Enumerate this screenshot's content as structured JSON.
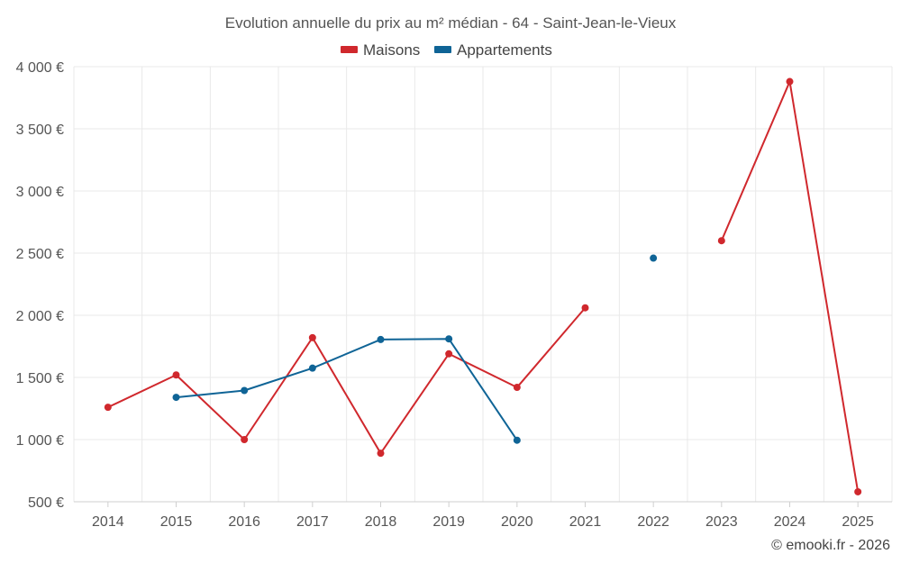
{
  "chart_data": {
    "type": "line",
    "title": "Evolution annuelle du prix au m² médian - 64 - Saint-Jean-le-Vieux",
    "categories": [
      "2014",
      "2015",
      "2016",
      "2017",
      "2018",
      "2019",
      "2020",
      "2021",
      "2022",
      "2023",
      "2024",
      "2025"
    ],
    "series": [
      {
        "name": "Maisons",
        "color": "#d0282d",
        "values": [
          1260,
          1520,
          1000,
          1820,
          890,
          1690,
          1420,
          2060,
          null,
          2600,
          3880,
          580
        ]
      },
      {
        "name": "Appartements",
        "color": "#0f6496",
        "values": [
          null,
          1340,
          1395,
          1575,
          1805,
          1810,
          995,
          null,
          2460,
          null,
          null,
          null
        ]
      }
    ],
    "y_ticks": [
      500,
      1000,
      1500,
      2000,
      2500,
      3000,
      3500,
      4000
    ],
    "y_tick_labels": [
      "500 €",
      "1 000 €",
      "1 500 €",
      "2 000 €",
      "2 500 €",
      "3 000 €",
      "3 500 €",
      "4 000 €"
    ],
    "ylim": [
      500,
      4000
    ],
    "xlabel": "",
    "ylabel": "",
    "grid": true,
    "legend_position": "top-center"
  },
  "credit": "© emooki.fr - 2026"
}
